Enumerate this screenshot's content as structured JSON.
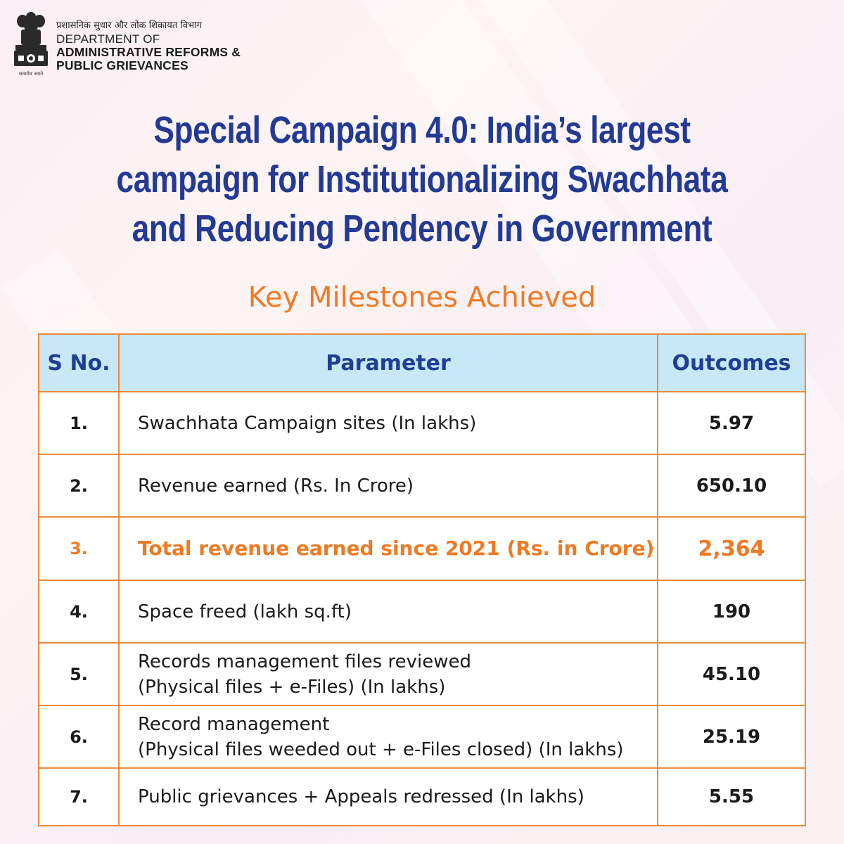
{
  "header": {
    "hindi_name": "प्रशासनिक सुधार और लोक शिकायत विभाग",
    "dept_of": "DEPARTMENT OF",
    "dept_line1": "ADMINISTRATIVE REFORMS &",
    "dept_line2": "PUBLIC GRIEVANCES",
    "motto": "सत्यमेव जयते",
    "emblem_icon": "ashoka-emblem-icon"
  },
  "title": {
    "line1": "Special Campaign 4.0: India’s largest",
    "line2": "campaign for Institutionalizing Swachhata",
    "line3": "and Reducing Pendency in Government"
  },
  "subtitle": "Key Milestones Achieved",
  "colors": {
    "title": "#233a94",
    "accent_orange": "#ee7a24",
    "header_bg": "#c8e7f7",
    "border": "#ec8a3c"
  },
  "table": {
    "columns": [
      "S No.",
      "Parameter",
      "Outcomes"
    ],
    "rows": [
      {
        "sno": "1.",
        "param_line1": "Swachhata Campaign sites (In lakhs)",
        "param_line2": "",
        "value": "5.97"
      },
      {
        "sno": "2.",
        "param_line1": "Revenue earned (Rs. In Crore)",
        "param_line2": "",
        "value": "650.10"
      },
      {
        "sno": "3.",
        "param_line1": "Total revenue earned since 2021 (Rs. in Crore)",
        "param_line2": "",
        "value": "2,364"
      },
      {
        "sno": "4.",
        "param_line1": "Space freed (lakh sq.ft)",
        "param_line2": "",
        "value": "190"
      },
      {
        "sno": "5.",
        "param_line1": "Records management files reviewed",
        "param_line2": "(Physical files + e-Files) (In lakhs)",
        "value": "45.10"
      },
      {
        "sno": "6.",
        "param_line1": "Record management",
        "param_line2": "(Physical files weeded out + e-Files closed) (In lakhs)",
        "value": "25.19"
      },
      {
        "sno": "7.",
        "param_line1": "Public grievances + Appeals redressed  (In lakhs)",
        "param_line2": "",
        "value": "5.55"
      }
    ]
  }
}
